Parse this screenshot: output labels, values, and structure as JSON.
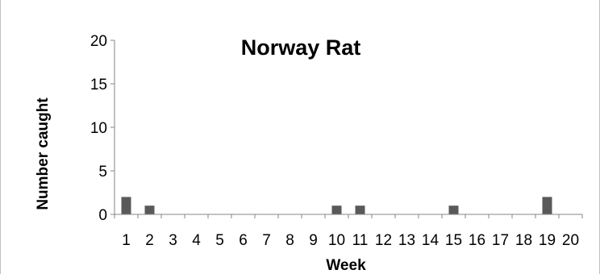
{
  "chart_data": {
    "type": "bar",
    "title": "Norway Rat",
    "xlabel": "Week",
    "ylabel": "Number caught",
    "categories": [
      "1",
      "2",
      "3",
      "4",
      "5",
      "6",
      "7",
      "8",
      "9",
      "10",
      "11",
      "12",
      "13",
      "14",
      "15",
      "16",
      "17",
      "18",
      "19",
      "20"
    ],
    "values": [
      2,
      1,
      0,
      0,
      0,
      0,
      0,
      0,
      0,
      1,
      1,
      0,
      0,
      0,
      1,
      0,
      0,
      0,
      2,
      0
    ],
    "ylim": [
      0,
      20
    ],
    "yticks": [
      "0",
      "5",
      "10",
      "15",
      "20"
    ],
    "grid": false,
    "legend": "none",
    "colors": {
      "bar": "#595959",
      "axis": "#868686"
    }
  }
}
